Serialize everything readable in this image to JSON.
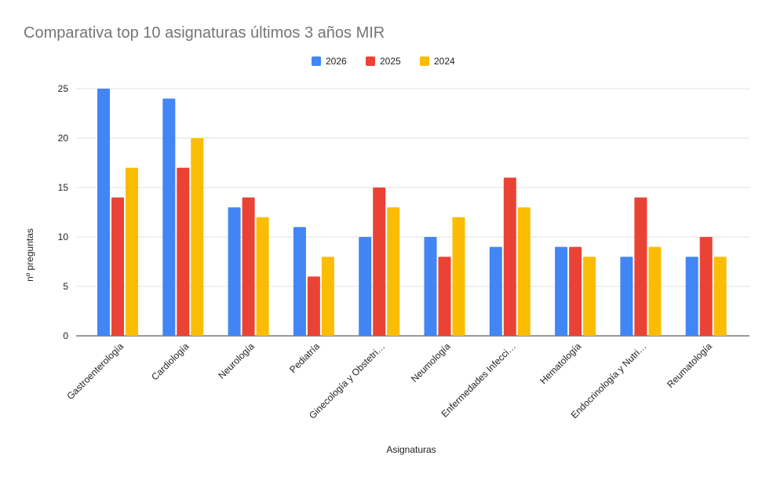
{
  "chart_data": {
    "type": "bar",
    "title": "Comparativa top 10 asignaturas últimos 3 años MIR",
    "xlabel": "Asignaturas",
    "ylabel": "nº preguntas",
    "ylim": [
      0,
      25
    ],
    "yticks": [
      "0",
      "5",
      "10",
      "15",
      "20",
      "25"
    ],
    "grid": true,
    "legend": "top",
    "categories": [
      "Gastroenterología",
      "Cardiología",
      "Neurología",
      "Pediatría",
      "Ginecología y Obstetri…",
      "Neumología",
      "Enfermedades Infecci…",
      "Hematología",
      "Endocrinología y Nutri…",
      "Reumatología"
    ],
    "series": [
      {
        "name": "2026",
        "color": "#4285f4",
        "values": [
          25,
          24,
          13,
          11,
          10,
          10,
          9,
          9,
          8,
          8
        ]
      },
      {
        "name": "2025",
        "color": "#ea4335",
        "values": [
          14,
          17,
          14,
          6,
          15,
          8,
          16,
          9,
          14,
          10
        ]
      },
      {
        "name": "2024",
        "color": "#fbbc04",
        "values": [
          17,
          20,
          12,
          8,
          13,
          12,
          13,
          8,
          9,
          8
        ]
      }
    ]
  }
}
